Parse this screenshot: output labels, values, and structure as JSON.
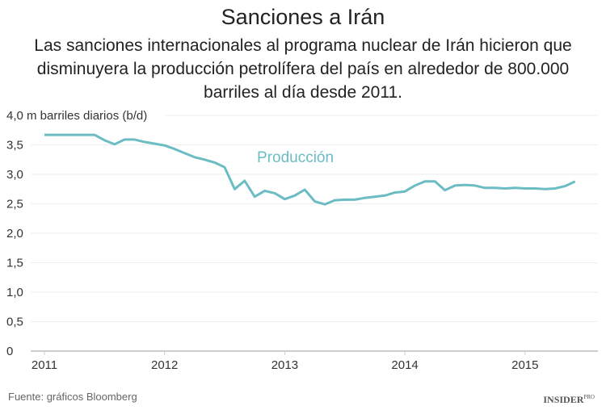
{
  "title": "Sanciones a Irán",
  "subtitle": "Las sanciones internacionales al programa nuclear de Irán hicieron que disminuyera la producción petrolífera del país en alrededor de 800.000 barriles al día desde 2011.",
  "source": "Fuente: gráficos Bloomberg",
  "logo": "INSIDER PRO",
  "chart_data": {
    "type": "line",
    "ylabel": "4,0 m barriles diarios (b/d)",
    "ylim": [
      0,
      4.0
    ],
    "yticks": [
      "0",
      "0,5",
      "1,0",
      "1,5",
      "2,0",
      "2,5",
      "3,0",
      "3,5"
    ],
    "xticks": [
      "2011",
      "2012",
      "2013",
      "2014",
      "2015"
    ],
    "grid": true,
    "color": "#6bbcc3",
    "series": [
      {
        "name": "Producción",
        "start": "2011-01",
        "frequency": "monthly",
        "values": [
          3.67,
          3.67,
          3.67,
          3.67,
          3.67,
          3.67,
          3.58,
          3.51,
          3.59,
          3.59,
          3.55,
          3.52,
          3.49,
          3.43,
          3.36,
          3.29,
          3.25,
          3.2,
          3.12,
          2.75,
          2.89,
          2.62,
          2.72,
          2.68,
          2.58,
          2.64,
          2.74,
          2.54,
          2.49,
          2.56,
          2.57,
          2.57,
          2.6,
          2.62,
          2.64,
          2.69,
          2.71,
          2.81,
          2.88,
          2.88,
          2.73,
          2.81,
          2.82,
          2.81,
          2.77,
          2.77,
          2.76,
          2.77,
          2.76,
          2.76,
          2.75,
          2.76,
          2.8,
          2.88
        ]
      }
    ]
  }
}
